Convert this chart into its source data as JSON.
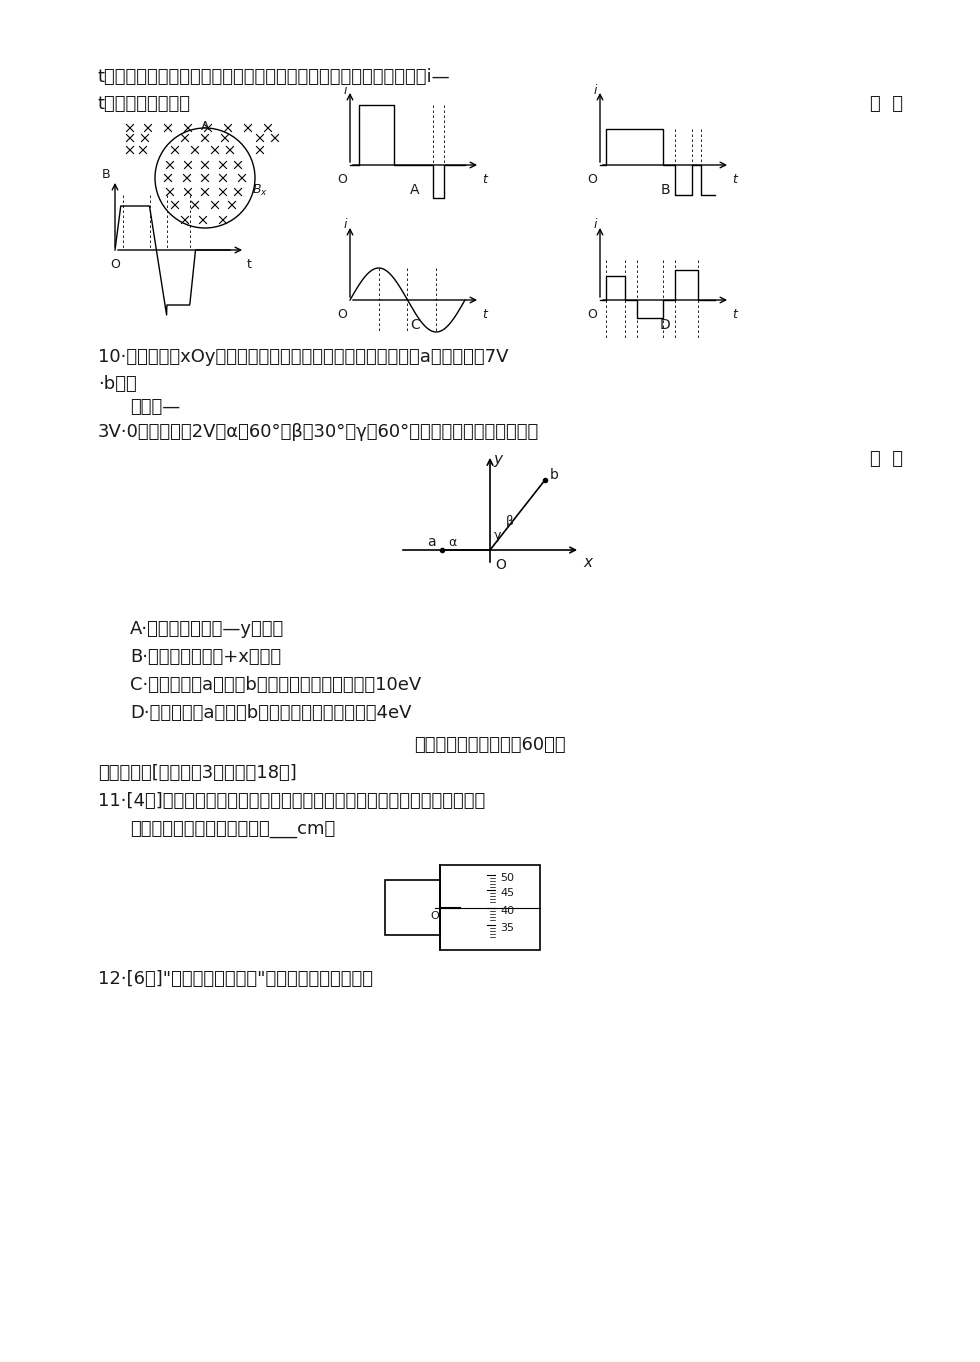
{
  "background_color": "#ffffff",
  "page_width": 9.2,
  "page_height": 13.02,
  "text_color": "#1a1a1a",
  "line1": "t图象所示。图中所标的磁场方向和感应电流方向为正方向，那么下面i—",
  "line2": "t图中正确的选项是",
  "bracket1": "［  ］",
  "q10_line1": "10·如以下图，xOy平面上有一电场线与平面平行的匀强电场，a点的电势为7V",
  "q10_line2": "·b点的",
  "q10_line3": "电势为—",
  "q10_line4": "3V·0点的电势为2V，α＝60°，β＝30°，γ＝60°。以下说法中正确的选项是",
  "bracket2": "［  ］",
  "optA": "A·该电场的场强在—y方向上",
  "optB": "B·该电场的场强在+x方向上",
  "optC": "C·将一电子从a点移到b点，电子的电势能将减小10eV",
  "optD": "D·将一电子从a点移到b点，电子的电势能将增加4eV",
  "section2_header": "第二卷［非选择题，共60分］",
  "section2_title": "二、实验题[此题包括3小题，共18分]",
  "q11": "11·[4分]用螺旋测微器测量金属丝的直径，螺旋测微器的读数局部如右图所示",
  "q11b": "，由图可知，金属丝的直径是___cm。",
  "q12": "12·[6分]\"电场中等势线描绘\"的实验装置如以下图。"
}
